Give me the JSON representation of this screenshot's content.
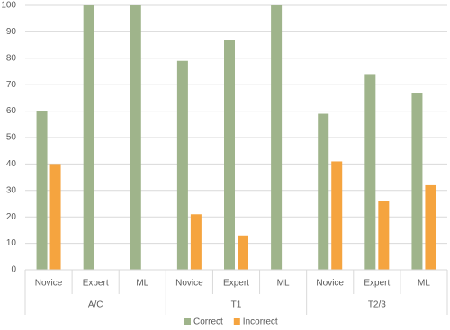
{
  "chart_data": {
    "type": "bar",
    "groups": [
      {
        "name": "A/C",
        "categories": [
          "Novice",
          "Expert",
          "ML"
        ]
      },
      {
        "name": "T1",
        "categories": [
          "Novice",
          "Expert",
          "ML"
        ]
      },
      {
        "name": "T2/3",
        "categories": [
          "Novice",
          "Expert",
          "ML"
        ]
      }
    ],
    "series": [
      {
        "name": "Correct",
        "color": "#9fb48b",
        "values": [
          60,
          100,
          100,
          79,
          87,
          100,
          59,
          74,
          67
        ]
      },
      {
        "name": "Incorrect",
        "color": "#f5a43f",
        "values": [
          40,
          0,
          0,
          21,
          13,
          0,
          41,
          26,
          32
        ]
      }
    ],
    "ylim": [
      0,
      100
    ],
    "yticks": [
      0,
      10,
      20,
      30,
      40,
      50,
      60,
      70,
      80,
      90,
      100
    ],
    "grid": true,
    "legend": "bottom"
  }
}
